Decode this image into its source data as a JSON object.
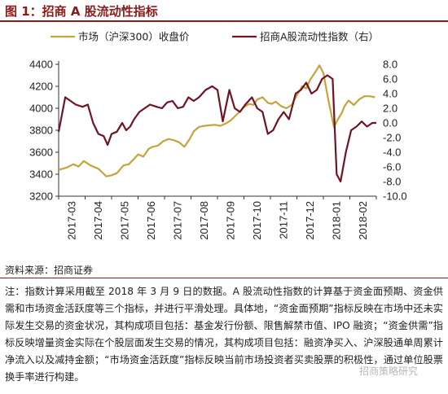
{
  "figure": {
    "title": "图 1：招商 A 股流动性指标",
    "source": "资料来源：招商证券",
    "note": "注：指数计算采用截至 2018 年 3 月 9 日的数据。A 股流动性指数的计算基于资金面预期、资金供需和市场资金活跃度等三个指标，并进行平滑处理。具体地，“资金面预期”指标反映在市场中还未实际发生交易的资金状况，其构成项目包括：基金发行份额、限售解禁市值、IPO 融资；“资金供需”指标反映增量资金实际在个股层面发生交易的情况，其构成项目包括：融资净买入、沪深股通单周累计净流入以及减持金额；“市场资金活跃度”指标反映当前市场投资者买卖股票的积极性，通过单位股票换手率进行构建。",
    "watermark": "招商策略研究"
  },
  "chart_data": {
    "type": "line",
    "x_ticks": [
      "2017-03",
      "2017-04",
      "2017-05",
      "2017-06",
      "2017-07",
      "2017-08",
      "2017-09",
      "2017-10",
      "2017-11",
      "2017-12",
      "2018-01",
      "2018-02"
    ],
    "x_range": [
      0,
      12
    ],
    "y_left": {
      "ticks": [
        3200,
        3400,
        3600,
        3800,
        4000,
        4200,
        4400
      ],
      "range": [
        3200,
        4400
      ]
    },
    "y_right": {
      "ticks": [
        8.0,
        6.0,
        4.0,
        2.0,
        0.0,
        -2.0,
        -4.0,
        -6.0,
        -8.0,
        -10.0
      ],
      "range": [
        -10,
        8
      ],
      "negative_color": "#cc0000"
    },
    "legend_position": "top",
    "series": [
      {
        "name": "市场（沪深300）收盘价",
        "axis": "left",
        "color": "#C4A43C",
        "x": [
          0.0,
          0.3,
          0.55,
          0.75,
          0.95,
          1.2,
          1.5,
          1.8,
          2.0,
          2.2,
          2.45,
          2.65,
          2.85,
          3.0,
          3.2,
          3.4,
          3.55,
          3.75,
          3.95,
          4.15,
          4.35,
          4.55,
          4.75,
          4.95,
          5.1,
          5.3,
          5.5,
          5.7,
          5.9,
          6.1,
          6.3,
          6.5,
          6.8,
          7.0,
          7.2,
          7.35,
          7.5,
          7.7,
          7.9,
          8.05,
          8.2,
          8.4,
          8.6,
          8.8,
          9.0,
          9.2,
          9.35,
          9.5,
          9.7,
          9.85,
          10.0,
          10.2,
          10.4,
          10.55,
          10.7,
          10.8,
          10.95,
          11.15,
          11.35,
          11.55,
          11.75,
          11.95
        ],
        "values": [
          3440,
          3460,
          3490,
          3470,
          3520,
          3480,
          3450,
          3380,
          3390,
          3410,
          3480,
          3490,
          3540,
          3580,
          3560,
          3630,
          3650,
          3660,
          3700,
          3720,
          3710,
          3690,
          3650,
          3720,
          3790,
          3830,
          3840,
          3845,
          3850,
          3840,
          3860,
          3890,
          3960,
          4010,
          4040,
          4030,
          4080,
          4100,
          4050,
          4040,
          4060,
          4020,
          4000,
          4030,
          4120,
          4200,
          4180,
          4260,
          4330,
          4390,
          4320,
          4060,
          3830,
          3900,
          3960,
          4020,
          4070,
          4030,
          4080,
          4110,
          4110,
          4100
        ]
      },
      {
        "name": "招商A股流动性指数（右）",
        "axis": "right",
        "color": "#6E1423",
        "x": [
          0.0,
          0.25,
          0.45,
          0.65,
          0.9,
          1.1,
          1.3,
          1.5,
          1.7,
          1.85,
          2.0,
          2.2,
          2.4,
          2.55,
          2.7,
          2.85,
          3.05,
          3.25,
          3.45,
          3.7,
          3.9,
          4.1,
          4.3,
          4.5,
          4.7,
          4.9,
          5.1,
          5.3,
          5.55,
          5.8,
          6.0,
          6.2,
          6.45,
          6.65,
          6.85,
          7.05,
          7.3,
          7.5,
          7.7,
          7.9,
          8.1,
          8.3,
          8.5,
          8.7,
          8.95,
          9.15,
          9.35,
          9.55,
          9.75,
          9.95,
          10.15,
          10.35,
          10.5,
          10.65,
          10.85,
          11.05,
          11.25,
          11.45,
          11.65,
          11.85,
          12.0
        ],
        "values": [
          -1.2,
          3.5,
          3.0,
          2.5,
          2.2,
          2.5,
          0.0,
          -1.5,
          -1.8,
          -3.0,
          -1.5,
          -1.2,
          0.0,
          -1.0,
          -0.5,
          0.5,
          1.5,
          2.0,
          2.5,
          2.2,
          2.0,
          2.8,
          3.0,
          2.0,
          2.2,
          3.5,
          3.0,
          3.5,
          4.5,
          5.0,
          4.5,
          0.2,
          4.5,
          2.0,
          1.5,
          2.5,
          3.5,
          2.0,
          1.5,
          -1.5,
          -1.0,
          0.5,
          1.5,
          0.5,
          4.0,
          4.5,
          5.5,
          4.0,
          4.5,
          6.0,
          6.5,
          6.0,
          -7.0,
          -8.0,
          -4.0,
          -1.0,
          -0.5,
          0.2,
          -0.5,
          0.0,
          0.0
        ]
      }
    ]
  }
}
